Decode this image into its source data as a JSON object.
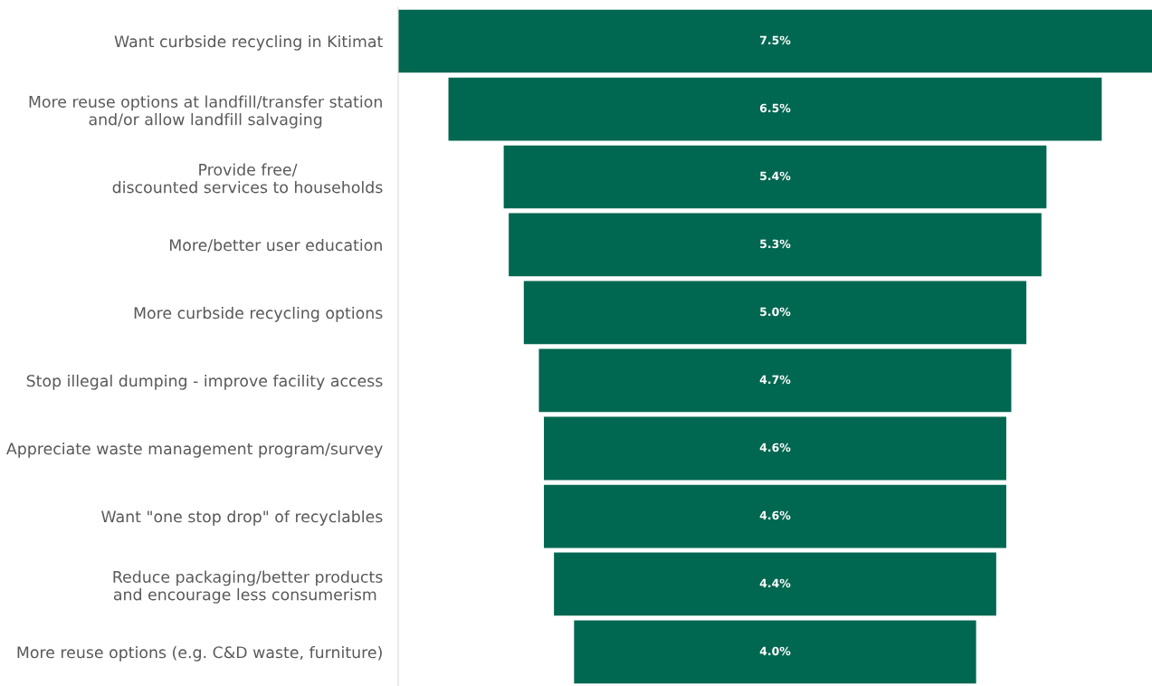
{
  "chart_data": {
    "type": "other",
    "categories": [
      "Want curbside recycling in Kitimat",
      "More reuse options at landfill/transfer station\nand/or allow landfill salvaging",
      "Provide free/\ndiscounted services to households",
      "More/better user education",
      "More curbside recycling options",
      "Stop illegal dumping - improve facility access",
      "Appreciate waste management program/survey",
      "Want \"one stop drop\" of recyclables",
      "Reduce packaging/better products\nand encourage less consumerism ",
      "More reuse options (e.g. C&D waste, furniture)"
    ],
    "values": [
      7.5,
      6.5,
      5.4,
      5.3,
      5.0,
      4.7,
      4.6,
      4.6,
      4.4,
      4.0
    ],
    "value_labels": [
      "7.5%",
      "6.5%",
      "5.4%",
      "5.3%",
      "5.0%",
      "4.7%",
      "4.6%",
      "4.6%",
      "4.4%",
      "4.0%"
    ],
    "color": "#006750"
  }
}
